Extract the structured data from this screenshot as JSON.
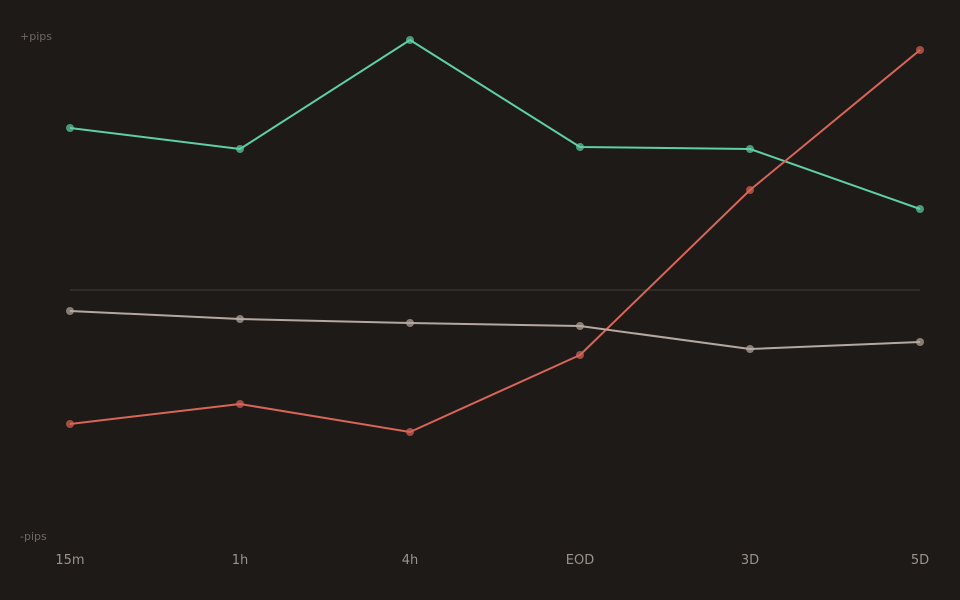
{
  "chart_data": {
    "type": "line",
    "title": "",
    "xlabel": "",
    "ylabel": "",
    "y_top_label": "+pips",
    "y_bottom_label": "-pips",
    "categories": [
      "15m",
      "1h",
      "4h",
      "EOD",
      "3D",
      "5D"
    ],
    "ylim": [
      -100,
      100
    ],
    "zero_line": true,
    "grid": false,
    "legend": "none",
    "series": [
      {
        "color": "#5fcfa6",
        "values": [
          64.8,
          56.4,
          100,
          57.2,
          56.4,
          32.4
        ]
      },
      {
        "color": "#d76558",
        "values": [
          -53.6,
          -45.6,
          -56.8,
          -26,
          40,
          96
        ]
      },
      {
        "color": "#b5a89f",
        "values": [
          -8.4,
          -11.6,
          -13.2,
          -14.4,
          -23.6,
          -20.8
        ]
      }
    ]
  }
}
